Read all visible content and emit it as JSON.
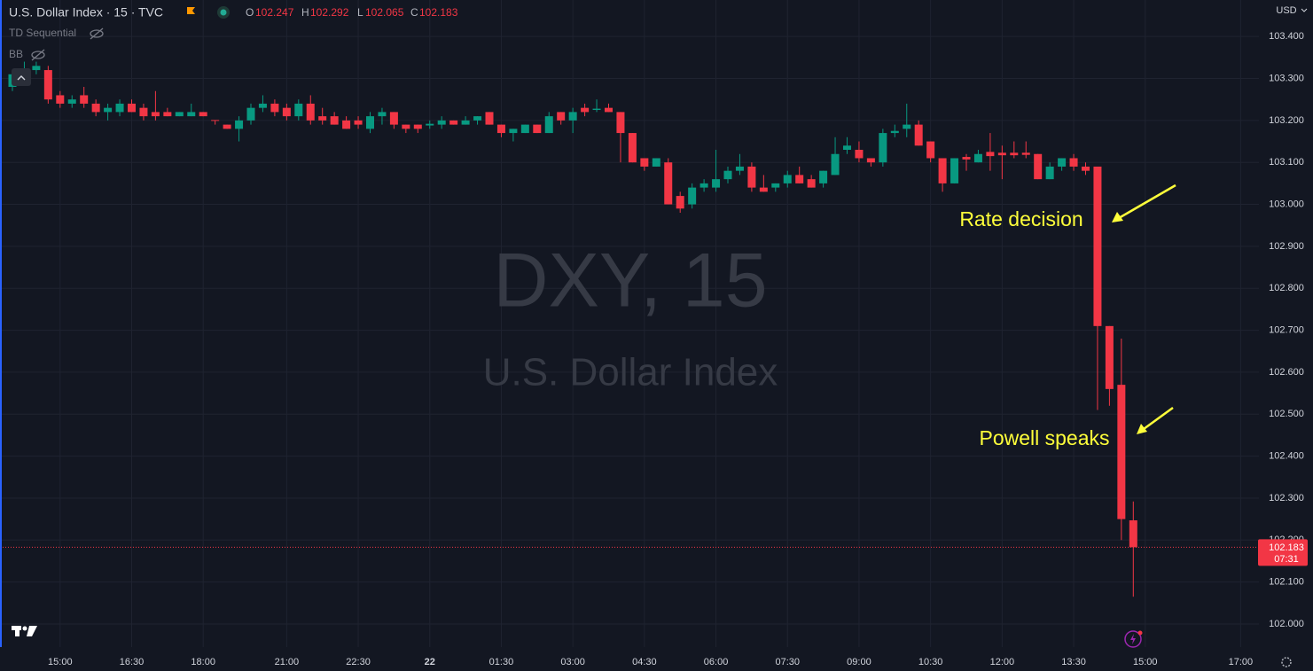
{
  "chart_data": {
    "type": "candlestick",
    "title": "U.S. Dollar Index · 15 · TVC",
    "legend_keys": [
      "O",
      "H",
      "L",
      "C"
    ],
    "indicators": [
      "TD Sequential",
      "BB"
    ],
    "watermark": [
      "DXY, 15",
      "U.S. Dollar Index"
    ],
    "currency": "USD",
    "countdown": "07:31",
    "annotations": [
      "Rate decision",
      "Powell speaks"
    ],
    "up_color": "#089981",
    "down_color": "#f23645",
    "grid": true,
    "categories": [
      null,
      null,
      null,
      null,
      "15:00",
      null,
      null,
      null,
      null,
      null,
      "16:30",
      null,
      null,
      null,
      null,
      null,
      "18:00",
      null,
      null,
      null,
      null,
      null,
      null,
      "21:00",
      null,
      null,
      null,
      null,
      null,
      "22:30",
      null,
      null,
      null,
      null,
      null,
      "22",
      null,
      null,
      null,
      null,
      null,
      "01:30",
      null,
      null,
      null,
      null,
      null,
      "03:00",
      null,
      null,
      null,
      null,
      null,
      "04:30",
      null,
      null,
      null,
      null,
      null,
      "06:00",
      null,
      null,
      null,
      null,
      null,
      "07:30",
      null,
      null,
      null,
      null,
      null,
      "09:00",
      null,
      null,
      null,
      null,
      null,
      "10:30",
      null,
      null,
      null,
      null,
      null,
      "12:00",
      null,
      null,
      null,
      null,
      null,
      "13:30",
      null,
      null,
      null,
      null,
      null,
      "15:00",
      null,
      null,
      null,
      null,
      null,
      null,
      null,
      "17:00"
    ],
    "open": [
      103.28,
      103.31,
      103.32,
      103.32,
      103.26,
      103.24,
      103.26,
      103.24,
      103.22,
      103.22,
      103.24,
      103.23,
      103.22,
      103.22,
      103.21,
      103.21,
      103.22,
      103.201,
      103.19,
      103.18,
      103.2,
      103.23,
      103.24,
      103.23,
      103.21,
      103.24,
      103.21,
      103.21,
      103.2,
      103.2,
      103.18,
      103.21,
      103.22,
      103.19,
      103.19,
      103.188,
      103.19,
      103.2,
      103.19,
      103.2,
      103.22,
      103.19,
      103.17,
      103.17,
      103.19,
      103.17,
      103.22,
      103.2,
      103.23,
      103.225,
      103.23,
      103.22,
      103.17,
      103.11,
      103.09,
      103.1,
      103.02,
      103.0,
      103.04,
      103.04,
      103.06,
      103.08,
      103.09,
      103.04,
      103.04,
      103.05,
      103.07,
      103.06,
      103.05,
      103.07,
      103.13,
      103.13,
      103.11,
      103.1,
      103.17,
      103.18,
      103.19,
      103.15,
      103.11,
      103.05,
      103.113,
      103.1,
      103.125,
      103.123,
      103.123,
      103.123,
      103.12,
      103.06,
      103.09,
      103.11,
      103.09,
      103.09,
      102.71,
      102.57,
      102.247,
      null,
      null,
      null,
      null,
      null,
      null,
      null,
      null,
      null
    ],
    "high": [
      103.32,
      103.34,
      103.34,
      103.33,
      103.27,
      103.26,
      103.28,
      103.25,
      103.24,
      103.25,
      103.25,
      103.24,
      103.27,
      103.23,
      103.22,
      103.24,
      103.22,
      103.2,
      103.19,
      103.21,
      103.24,
      103.26,
      103.25,
      103.24,
      103.25,
      103.26,
      103.23,
      103.22,
      103.21,
      103.21,
      103.22,
      103.23,
      103.22,
      103.19,
      103.19,
      103.2,
      103.21,
      103.2,
      103.21,
      103.21,
      103.22,
      103.19,
      103.18,
      103.19,
      103.19,
      103.22,
      103.22,
      103.23,
      103.24,
      103.25,
      103.24,
      103.22,
      103.17,
      103.11,
      103.11,
      103.11,
      103.03,
      103.05,
      103.06,
      103.13,
      103.09,
      103.12,
      103.1,
      103.07,
      103.05,
      103.08,
      103.09,
      103.07,
      103.08,
      103.16,
      103.16,
      103.15,
      103.11,
      103.18,
      103.19,
      103.24,
      103.2,
      103.15,
      103.11,
      103.11,
      103.12,
      103.13,
      103.17,
      103.14,
      103.15,
      103.15,
      103.12,
      103.1,
      103.11,
      103.12,
      103.1,
      103.09,
      102.71,
      102.68,
      102.292,
      null,
      null,
      null,
      null,
      null,
      null,
      null,
      null,
      null
    ],
    "low": [
      103.27,
      103.3,
      103.31,
      103.24,
      103.23,
      103.23,
      103.23,
      103.21,
      103.2,
      103.21,
      103.22,
      103.2,
      103.2,
      103.21,
      103.21,
      103.21,
      103.21,
      103.19,
      103.18,
      103.15,
      103.19,
      103.22,
      103.21,
      103.2,
      103.2,
      103.19,
      103.19,
      103.19,
      103.18,
      103.18,
      103.17,
      103.19,
      103.18,
      103.17,
      103.17,
      103.18,
      103.18,
      103.19,
      103.19,
      103.19,
      103.19,
      103.16,
      103.15,
      103.17,
      103.17,
      103.17,
      103.19,
      103.17,
      103.21,
      103.22,
      103.22,
      103.1,
      103.1,
      103.08,
      103.09,
      103.0,
      102.98,
      102.99,
      103.03,
      103.03,
      103.05,
      103.07,
      103.03,
      103.03,
      103.03,
      103.04,
      103.05,
      103.04,
      103.04,
      103.07,
      103.12,
      103.1,
      103.09,
      103.09,
      103.16,
      103.16,
      103.14,
      103.1,
      103.03,
      103.05,
      103.08,
      103.1,
      103.08,
      103.06,
      103.11,
      103.11,
      103.06,
      103.06,
      103.08,
      103.08,
      103.07,
      102.51,
      102.52,
      102.2,
      102.065,
      null,
      null,
      null,
      null,
      null,
      null,
      null,
      null,
      null
    ],
    "close": [
      103.31,
      103.32,
      103.33,
      103.25,
      103.24,
      103.25,
      103.24,
      103.22,
      103.23,
      103.24,
      103.22,
      103.21,
      103.21,
      103.21,
      103.22,
      103.22,
      103.21,
      103.199,
      103.18,
      103.2,
      103.23,
      103.24,
      103.22,
      103.21,
      103.24,
      103.2,
      103.2,
      103.19,
      103.18,
      103.19,
      103.21,
      103.22,
      103.19,
      103.18,
      103.18,
      103.192,
      103.2,
      103.19,
      103.2,
      103.21,
      103.19,
      103.17,
      103.18,
      103.19,
      103.17,
      103.21,
      103.2,
      103.22,
      103.22,
      103.228,
      103.22,
      103.17,
      103.1,
      103.09,
      103.11,
      103.0,
      102.99,
      103.04,
      103.05,
      103.06,
      103.08,
      103.09,
      103.04,
      103.03,
      103.05,
      103.07,
      103.05,
      103.04,
      103.08,
      103.12,
      103.14,
      103.11,
      103.1,
      103.17,
      103.175,
      103.19,
      103.14,
      103.11,
      103.05,
      103.11,
      103.107,
      103.12,
      103.115,
      103.117,
      103.117,
      103.118,
      103.06,
      103.09,
      103.11,
      103.09,
      103.08,
      102.71,
      102.56,
      102.25,
      102.183,
      null,
      null,
      null,
      null,
      null,
      null,
      null,
      null,
      null
    ],
    "ylim": [
      101.945,
      103.487
    ],
    "yticks": [
      {
        "value": 102.0,
        "label": "102.000"
      },
      {
        "value": 102.1,
        "label": "102.100"
      },
      {
        "value": 102.2,
        "label": "102.200"
      },
      {
        "value": 102.3,
        "label": "102.300"
      },
      {
        "value": 102.4,
        "label": "102.400"
      },
      {
        "value": 102.5,
        "label": "102.500"
      },
      {
        "value": 102.6,
        "label": "102.600"
      },
      {
        "value": 102.7,
        "label": "102.700"
      },
      {
        "value": 102.8,
        "label": "102.800"
      },
      {
        "value": 102.9,
        "label": "102.900"
      },
      {
        "value": 103.0,
        "label": "103.000"
      },
      {
        "value": 103.1,
        "label": "103.100"
      },
      {
        "value": 103.2,
        "label": "103.200"
      },
      {
        "value": 103.3,
        "label": "103.300"
      },
      {
        "value": 103.4,
        "label": "103.400"
      }
    ]
  }
}
